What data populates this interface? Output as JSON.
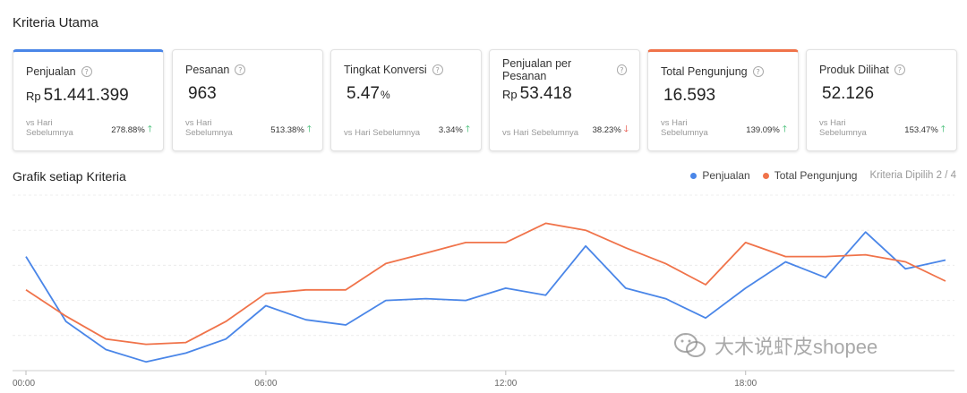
{
  "section_title": "Kriteria Utama",
  "chart_title": "Grafik setiap Kriteria",
  "cards": [
    {
      "label": "Penjualan",
      "prefix": "Rp",
      "value": "51.441.399",
      "suffix": "",
      "vs": "vs Hari Sebelumnya",
      "change": "278.88%",
      "trend": "up",
      "selected": "blue"
    },
    {
      "label": "Pesanan",
      "prefix": "",
      "value": "963",
      "suffix": "",
      "vs": "vs Hari Sebelumnya",
      "change": "513.38%",
      "trend": "up",
      "selected": ""
    },
    {
      "label": "Tingkat Konversi",
      "prefix": "",
      "value": "5.47",
      "suffix": "%",
      "vs": "vs Hari Sebelumnya",
      "change": "3.34%",
      "trend": "up",
      "selected": ""
    },
    {
      "label": "Penjualan per Pesanan",
      "prefix": "Rp",
      "value": "53.418",
      "suffix": "",
      "vs": "vs Hari Sebelumnya",
      "change": "38.23%",
      "trend": "down",
      "selected": ""
    },
    {
      "label": "Total Pengunjung",
      "prefix": "",
      "value": "16.593",
      "suffix": "",
      "vs": "vs Hari Sebelumnya",
      "change": "139.09%",
      "trend": "up",
      "selected": "orange"
    },
    {
      "label": "Produk Dilihat",
      "prefix": "",
      "value": "52.126",
      "suffix": "",
      "vs": "vs Hari Sebelumnya",
      "change": "153.47%",
      "trend": "up",
      "selected": ""
    }
  ],
  "legend": {
    "penjualan": "Penjualan",
    "pengunjung": "Total Pengunjung",
    "count": "Kriteria Dipilih 2 / 4"
  },
  "watermark": "大木说虾皮shopee",
  "colors": {
    "blue": "#4a86e8",
    "orange": "#f0734a",
    "up": "#25b35f",
    "down": "#e23b2e"
  },
  "chart_data": {
    "type": "line",
    "x": [
      "00:00",
      "01:00",
      "02:00",
      "03:00",
      "04:00",
      "05:00",
      "06:00",
      "07:00",
      "08:00",
      "09:00",
      "10:00",
      "11:00",
      "12:00",
      "13:00",
      "14:00",
      "15:00",
      "16:00",
      "17:00",
      "18:00",
      "19:00",
      "20:00",
      "21:00",
      "22:00",
      "23:00"
    ],
    "x_ticks": [
      "00:00",
      "06:00",
      "12:00",
      "18:00"
    ],
    "grid": true,
    "series": [
      {
        "name": "Penjualan",
        "color": "#4a86e8",
        "values": [
          65,
          28,
          12,
          5,
          10,
          18,
          37,
          29,
          26,
          40,
          41,
          40,
          47,
          43,
          71,
          47,
          41,
          30,
          47,
          62,
          53,
          79,
          58,
          63
        ]
      },
      {
        "name": "Total Pengunjung",
        "color": "#f0734a",
        "values": [
          46,
          31,
          18,
          15,
          16,
          28,
          44,
          46,
          46,
          61,
          67,
          73,
          73,
          84,
          80,
          70,
          61,
          49,
          73,
          65,
          65,
          66,
          62,
          51
        ]
      }
    ],
    "ylim": [
      0,
      100
    ]
  }
}
